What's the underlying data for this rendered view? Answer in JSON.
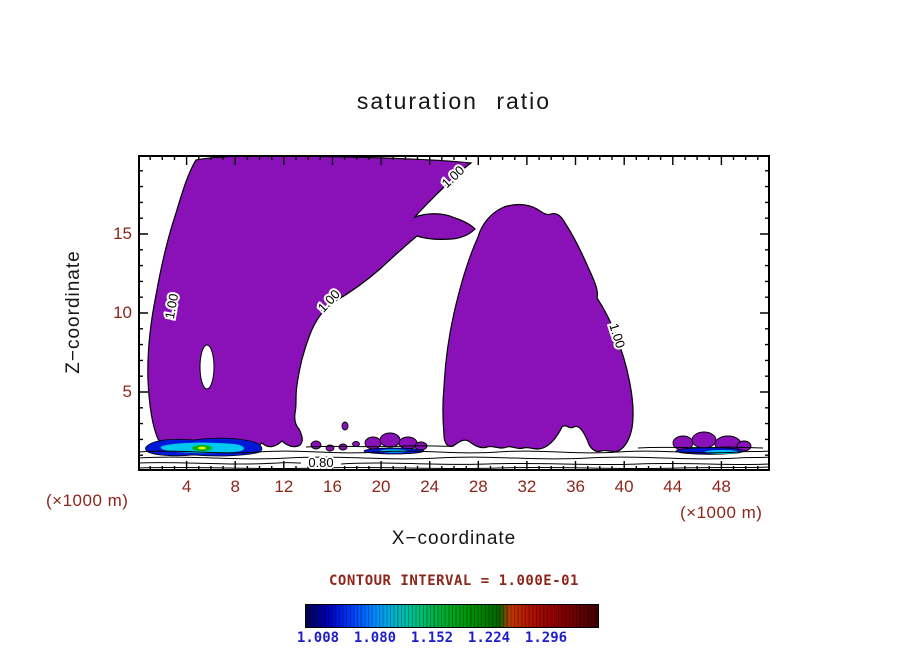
{
  "chart_data": {
    "type": "contour",
    "title": "saturation ratio",
    "xlabel": "X−coordinate",
    "ylabel": "Z−coordinate",
    "x_unit_label": "(×1000 m)",
    "y_unit_label": "(×1000 m)",
    "xlim": [
      0,
      52
    ],
    "ylim": [
      0,
      20
    ],
    "x_major_ticks": [
      4,
      8,
      12,
      16,
      20,
      24,
      28,
      32,
      36,
      40,
      44,
      48
    ],
    "y_major_ticks": [
      5,
      10,
      15
    ],
    "minor_tick_step": 1,
    "x_major_every": 4,
    "y_major_every": 5,
    "grid": false,
    "contour_interval_label": "CONTOUR INTERVAL = 1.000E-01",
    "contour_line_labels": [
      {
        "text": "1.00"
      },
      {
        "text": "1.00"
      },
      {
        "text": "1.00"
      },
      {
        "text": "1.00"
      },
      {
        "text": "0.80"
      }
    ],
    "filled_level_description": "regions with saturation ratio >= 1.0 filled purple; near-surface spots reach higher colorbar levels",
    "colorbar": {
      "position": "bottom",
      "tick_labels": [
        "1.008",
        "1.080",
        "1.152",
        "1.224",
        "1.296"
      ],
      "stops": [
        {
          "pos": 0.0,
          "color": "#00004f"
        },
        {
          "pos": 0.08,
          "color": "#0000c0"
        },
        {
          "pos": 0.16,
          "color": "#0040ff"
        },
        {
          "pos": 0.24,
          "color": "#0090ff"
        },
        {
          "pos": 0.31,
          "color": "#00b8c8"
        },
        {
          "pos": 0.38,
          "color": "#00c080"
        },
        {
          "pos": 0.45,
          "color": "#00b040"
        },
        {
          "pos": 0.52,
          "color": "#00a018"
        },
        {
          "pos": 0.59,
          "color": "#008800"
        },
        {
          "pos": 0.66,
          "color": "#006400"
        },
        {
          "pos": 0.7,
          "color": "#c03800"
        },
        {
          "pos": 0.77,
          "color": "#b01000"
        },
        {
          "pos": 0.85,
          "color": "#900000"
        },
        {
          "pos": 0.93,
          "color": "#680000"
        },
        {
          "pos": 1.0,
          "color": "#400000"
        }
      ]
    }
  },
  "colors": {
    "background": "#ffffff",
    "plot_text": "#161616",
    "tick_text": "#8d261b",
    "colorbar_label_text": "#1e1ec8",
    "contour_line": "#000000",
    "filled_region": "#8a10b8",
    "spot_blue": "#0018d8",
    "spot_cyan": "#00c8f0",
    "spot_green": "#00b400",
    "spot_yellow": "#f0f000"
  }
}
